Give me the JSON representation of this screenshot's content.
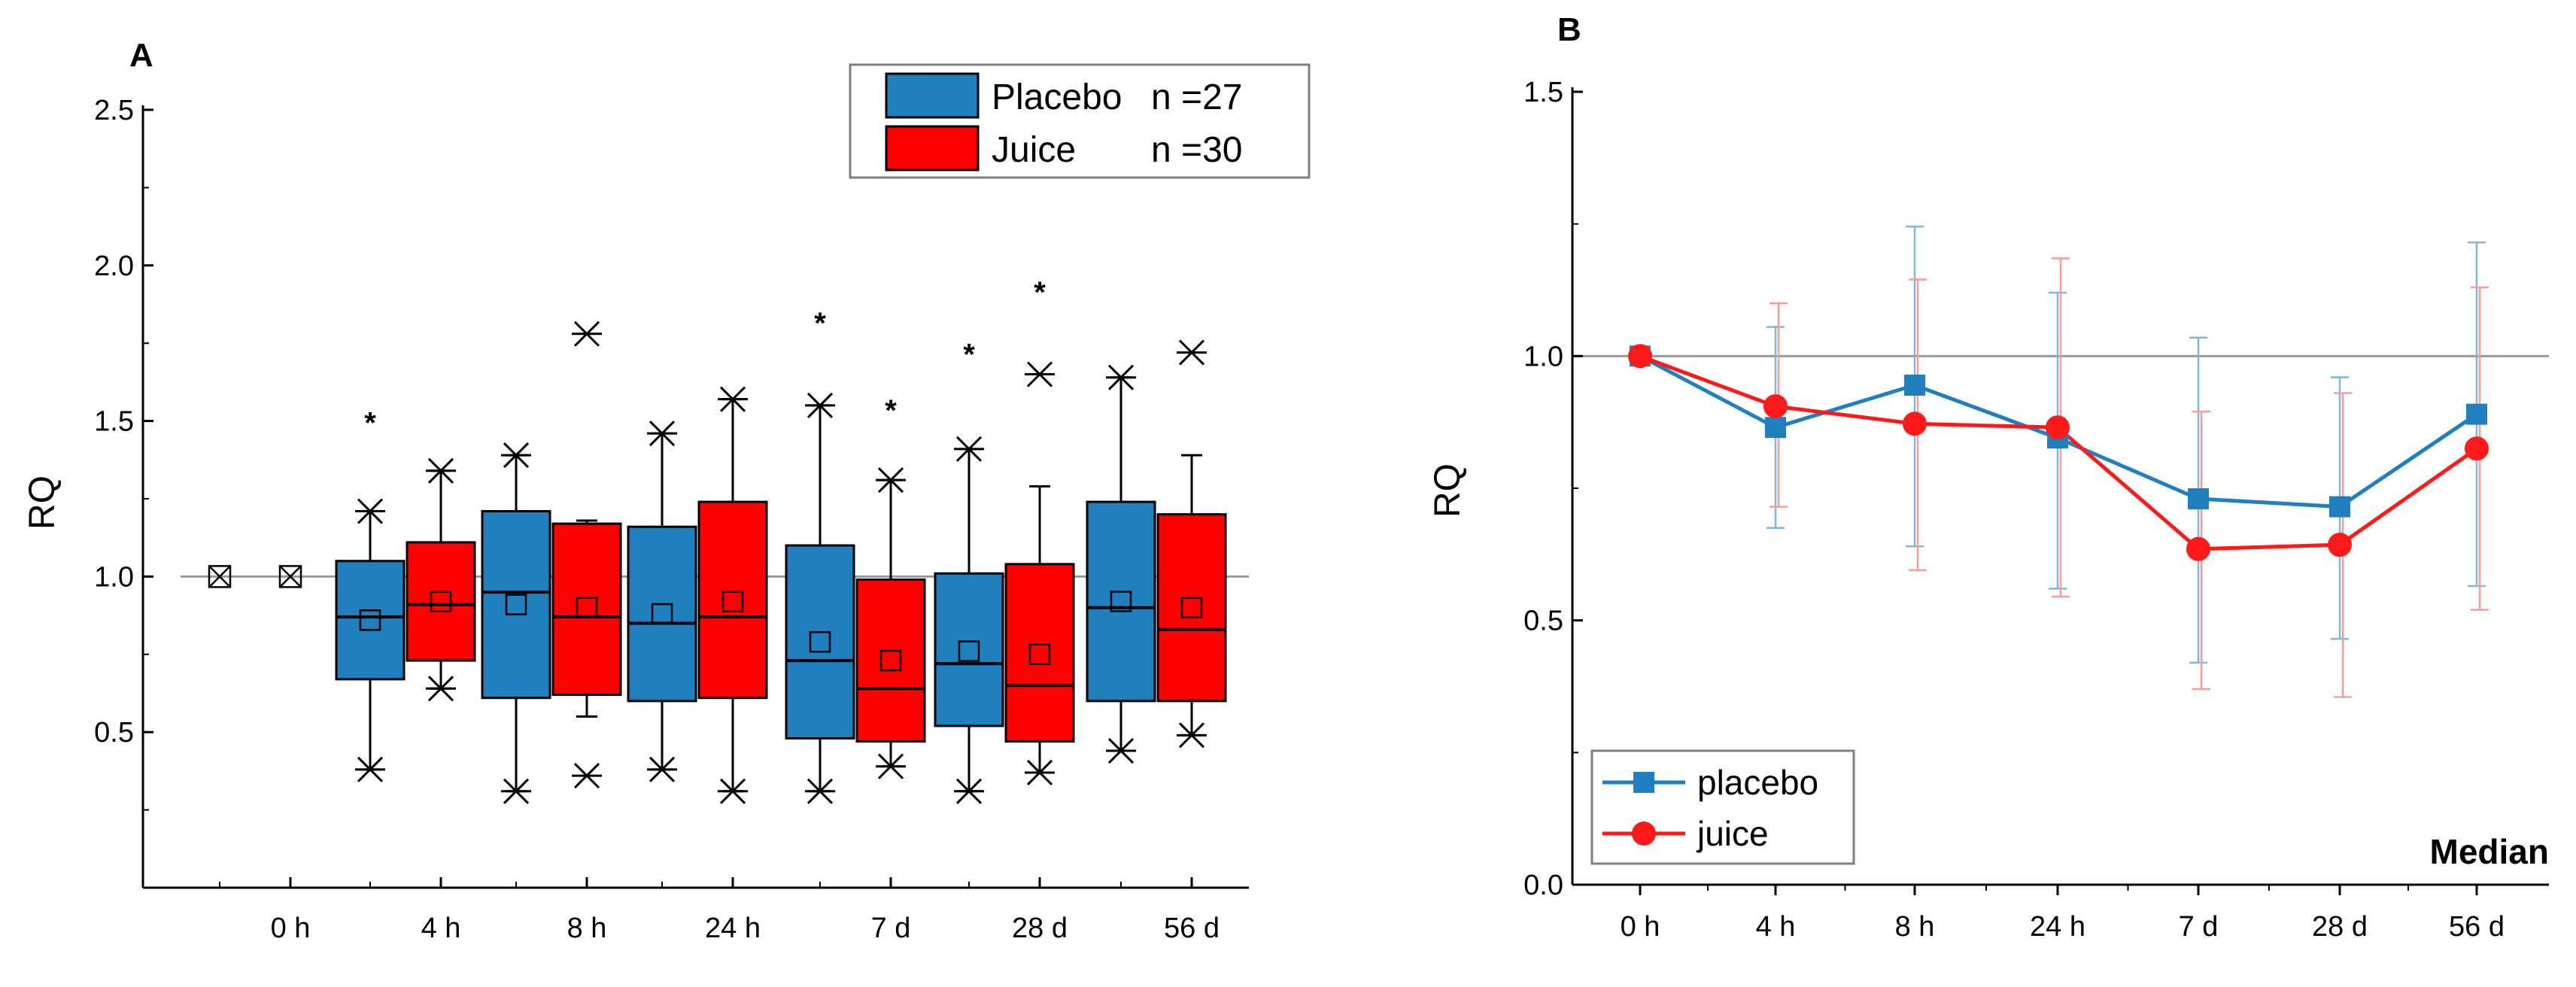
{
  "chart_data": [
    {
      "panel": "A",
      "type": "box",
      "ylabel": "RQ",
      "ylim": [
        0,
        2.5
      ],
      "yticks": [
        "0.5",
        "1.0",
        "1.5",
        "2.0",
        "2.5"
      ],
      "reference_line": 1.0,
      "categories": [
        "0 h",
        "4 h",
        "8 h",
        "24 h",
        "7 d",
        "28 d",
        "56 d"
      ],
      "legend": [
        {
          "label": "Placebo",
          "n": "n =27",
          "color": "#1f7fbf"
        },
        {
          "label": "Juice",
          "n": "n =30",
          "color": "#ff0000"
        }
      ],
      "groups": [
        {
          "category": "0 h",
          "series": "placebo",
          "q1": 1.0,
          "median": 1.0,
          "q3": 1.0,
          "whisker_low": 1.0,
          "whisker_high": 1.0,
          "mean": 1.0,
          "min": 1.0,
          "max": 1.0,
          "star": false
        },
        {
          "category": "0 h",
          "series": "juice",
          "q1": 1.0,
          "median": 1.0,
          "q3": 1.0,
          "whisker_low": 1.0,
          "whisker_high": 1.0,
          "mean": 1.0,
          "min": 1.0,
          "max": 1.0,
          "star": false
        },
        {
          "category": "4 h",
          "series": "placebo",
          "q1": 0.67,
          "median": 0.87,
          "q3": 1.05,
          "whisker_low": 0.38,
          "whisker_high": 1.21,
          "mean": 0.86,
          "min": 0.38,
          "max": 1.21,
          "star": true,
          "star_y": 1.5
        },
        {
          "category": "4 h",
          "series": "juice",
          "q1": 0.73,
          "median": 0.91,
          "q3": 1.11,
          "whisker_low": 0.64,
          "whisker_high": 1.34,
          "mean": 0.92,
          "min": 0.64,
          "max": 1.34,
          "star": false
        },
        {
          "category": "8 h",
          "series": "placebo",
          "q1": 0.61,
          "median": 0.95,
          "q3": 1.21,
          "whisker_low": 0.31,
          "whisker_high": 1.39,
          "mean": 0.91,
          "min": 0.31,
          "max": 1.39,
          "star": false
        },
        {
          "category": "8 h",
          "series": "juice",
          "q1": 0.62,
          "median": 0.87,
          "q3": 1.17,
          "whisker_low": 0.55,
          "whisker_high": 1.18,
          "mean": 0.9,
          "min": 0.36,
          "max": 1.78,
          "star": false
        },
        {
          "category": "24 h",
          "series": "placebo",
          "q1": 0.6,
          "median": 0.85,
          "q3": 1.16,
          "whisker_low": 0.38,
          "whisker_high": 1.46,
          "mean": 0.88,
          "min": 0.38,
          "max": 1.46,
          "star": false
        },
        {
          "category": "24 h",
          "series": "juice",
          "q1": 0.61,
          "median": 0.87,
          "q3": 1.24,
          "whisker_low": 0.31,
          "whisker_high": 1.57,
          "mean": 0.92,
          "min": 0.31,
          "max": 1.57,
          "star": false
        },
        {
          "category": "7 d",
          "series": "placebo",
          "q1": 0.48,
          "median": 0.73,
          "q3": 1.1,
          "whisker_low": 0.31,
          "whisker_high": 1.55,
          "mean": 0.79,
          "min": 0.31,
          "max": 1.55,
          "star": true,
          "star_y": 1.82
        },
        {
          "category": "7 d",
          "series": "juice",
          "q1": 0.47,
          "median": 0.64,
          "q3": 0.99,
          "whisker_low": 0.39,
          "whisker_high": 1.31,
          "mean": 0.73,
          "min": 0.39,
          "max": 1.31,
          "star": true,
          "star_y": 1.54
        },
        {
          "category": "28 d",
          "series": "placebo",
          "q1": 0.52,
          "median": 0.72,
          "q3": 1.01,
          "whisker_low": 0.31,
          "whisker_high": 1.41,
          "mean": 0.76,
          "min": 0.31,
          "max": 1.41,
          "star": true,
          "star_y": 1.72
        },
        {
          "category": "28 d",
          "series": "juice",
          "q1": 0.47,
          "median": 0.65,
          "q3": 1.04,
          "whisker_low": 0.37,
          "whisker_high": 1.29,
          "mean": 0.75,
          "min": 0.37,
          "max": 1.65,
          "star": true,
          "star_y": 1.92
        },
        {
          "category": "56 d",
          "series": "placebo",
          "q1": 0.6,
          "median": 0.9,
          "q3": 1.24,
          "whisker_low": 0.44,
          "whisker_high": 1.64,
          "mean": 0.92,
          "min": 0.44,
          "max": 1.64,
          "star": false
        },
        {
          "category": "56 d",
          "series": "juice",
          "q1": 0.6,
          "median": 0.83,
          "q3": 1.2,
          "whisker_low": 0.49,
          "whisker_high": 1.39,
          "mean": 0.9,
          "min": 0.49,
          "max": 1.72,
          "star": false
        }
      ]
    },
    {
      "panel": "B",
      "type": "line",
      "ylabel": "RQ",
      "ylim": [
        0,
        1.5
      ],
      "yticks": [
        "0.0",
        "0.5",
        "1.0",
        "1.5"
      ],
      "reference_line": 1.0,
      "categories": [
        "0 h",
        "4 h",
        "8 h",
        "24 h",
        "7 d",
        "28 d",
        "56 d"
      ],
      "annotation": "Median",
      "series": [
        {
          "name": "placebo",
          "color": "#1f7fbf",
          "marker": "square",
          "values": [
            1.0,
            0.865,
            0.945,
            0.845,
            0.73,
            0.715,
            0.89
          ],
          "err_low": [
            1.0,
            0.675,
            0.64,
            0.56,
            0.42,
            0.465,
            0.565
          ],
          "err_high": [
            1.0,
            1.055,
            1.245,
            1.12,
            1.035,
            0.96,
            1.215
          ]
        },
        {
          "name": "juice",
          "color": "#ff1a1a",
          "marker": "circle",
          "values": [
            1.0,
            0.905,
            0.872,
            0.865,
            0.635,
            0.643,
            0.825
          ],
          "err_low": [
            1.0,
            0.715,
            0.595,
            0.545,
            0.37,
            0.355,
            0.52
          ],
          "err_high": [
            1.0,
            1.1,
            1.145,
            1.185,
            0.895,
            0.93,
            1.13
          ]
        }
      ]
    }
  ]
}
